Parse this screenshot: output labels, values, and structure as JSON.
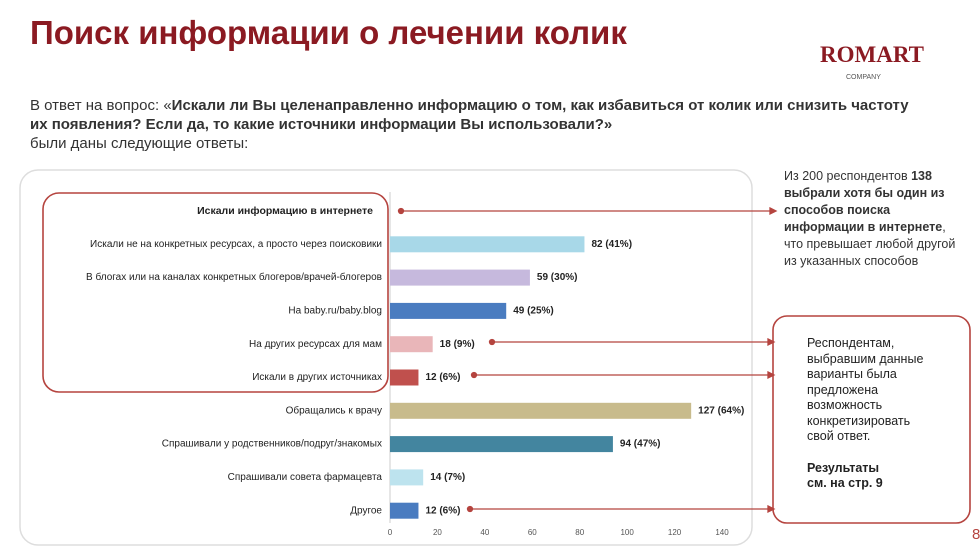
{
  "title": "Поиск информации о лечении колик",
  "logo": {
    "name": "ROMART",
    "sub": "COMPANY"
  },
  "intro": "В ответ на вопрос: «",
  "question_line1": "Искали ли Вы целенаправленно информацию о том, как избавиться от колик или снизить частоту",
  "question_line2": "их появления? Если да, то какие источники информации Вы использовали?»",
  "outro": "были даны следующие ответы:",
  "note1": [
    "Из 200 респондентов ",
    "138 выбрали хотя бы один из способов поиска информации в интернете",
    ", что превышает любой другой из указанных способов"
  ],
  "note2": {
    "text": "Респондентам, выбравшим данные варианты была предложена возможность конкретизировать свой ответ.",
    "bold": "Результаты см. на стр. 9"
  },
  "page_number": "8",
  "chart_data": {
    "type": "bar",
    "orientation": "horizontal",
    "categories": [
      "Искали информацию в интернете",
      "Искали не на конкретных ресурсах, а просто через поисковики",
      "В блогах или на каналах конкретных блогеров/врачей-блогеров",
      "На baby.ru/baby.blog",
      "На других ресурсах для мам",
      "Искали в других источниках",
      "Обращались к врачу",
      "Спрашивали у родственников/подруг/знакомых",
      "Спрашивали совета фармацевта",
      "Другое"
    ],
    "values": [
      null,
      82,
      59,
      49,
      18,
      12,
      127,
      94,
      14,
      12
    ],
    "value_labels": [
      null,
      "82 (41%)",
      "59 (30%)",
      "49 (25%)",
      "18 (9%)",
      "12 (6%)",
      "127 (64%)",
      "94 (47%)",
      "14 (7%)",
      "12 (6%)"
    ],
    "colors": [
      null,
      "#a8d8e8",
      "#c6b9dd",
      "#4a7cc0",
      "#e9b6b9",
      "#c0504d",
      "#c8bb8c",
      "#43859f",
      "#bde3ee",
      "#4a7cc0"
    ],
    "xlim": [
      0,
      140
    ],
    "xticks": [
      0,
      20,
      40,
      60,
      80,
      100,
      120,
      140
    ],
    "grid": false
  }
}
